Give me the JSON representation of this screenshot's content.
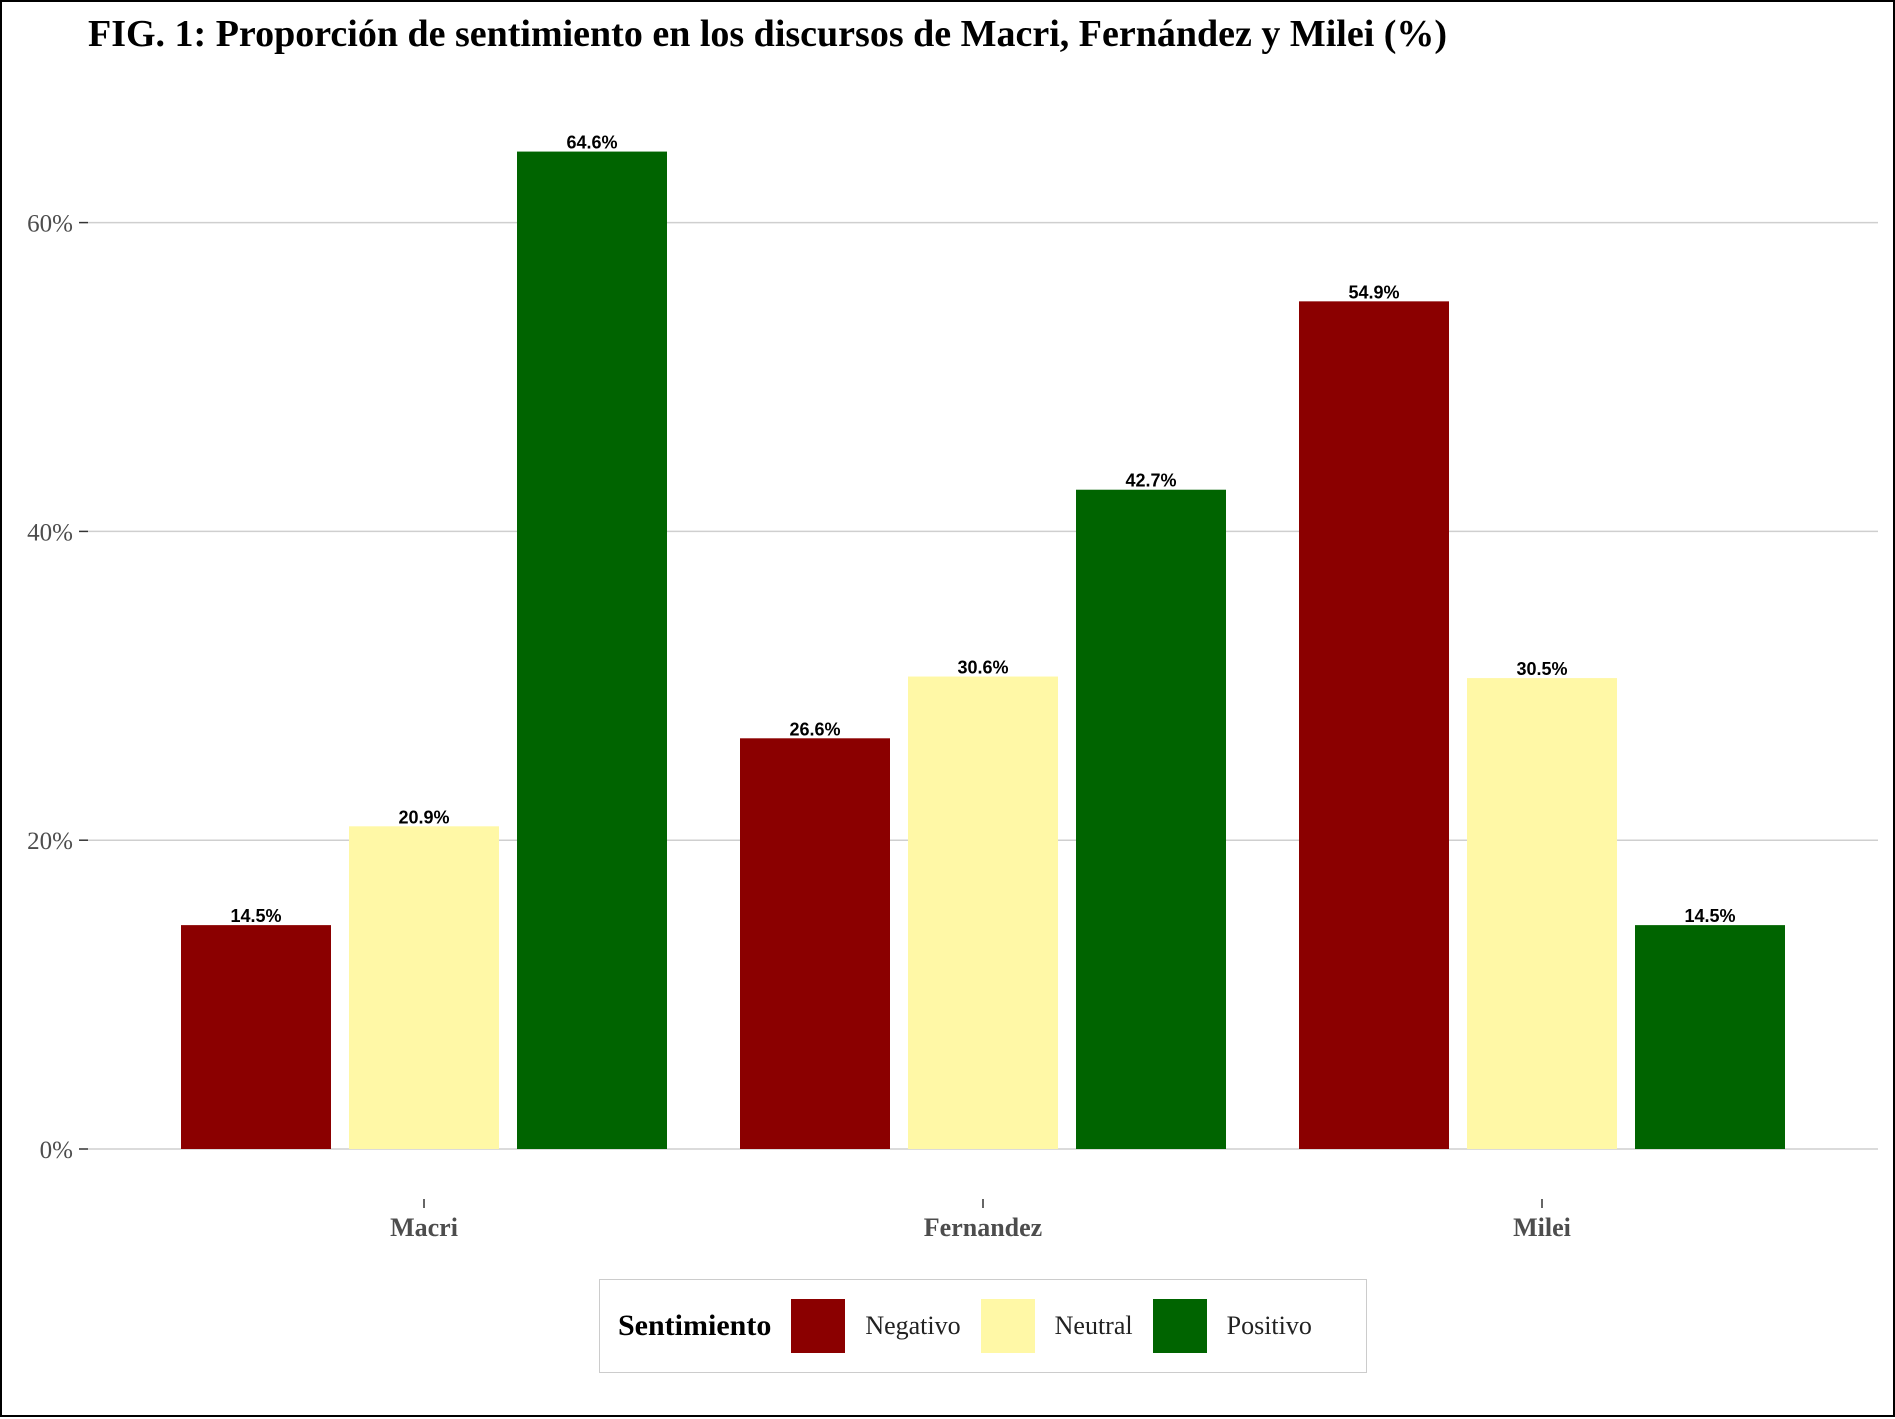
{
  "chart_data": {
    "type": "bar",
    "title": "FIG. 1: Proporción de sentimiento en los discursos de Macri, Fernández y Milei (%)",
    "xlabel": "",
    "ylabel": "",
    "categories": [
      "Macri",
      "Fernandez",
      "Milei"
    ],
    "series": [
      {
        "name": "Negativo",
        "color": "#8b0000",
        "values": [
          14.5,
          26.6,
          54.9
        ],
        "labels": [
          "14.5%",
          "26.6%",
          "54.9%"
        ]
      },
      {
        "name": "Neutral",
        "color": "#fff8a6",
        "values": [
          20.9,
          30.6,
          30.5
        ],
        "labels": [
          "20.9%",
          "30.6%",
          "30.5%"
        ]
      },
      {
        "name": "Positivo",
        "color": "#006400",
        "values": [
          64.6,
          42.7,
          14.5
        ],
        "labels": [
          "64.6%",
          "42.7%",
          "14.5%"
        ]
      }
    ],
    "ylim": [
      0,
      68
    ],
    "yticks": [
      0,
      20,
      40,
      60
    ],
    "ytick_labels": [
      "0%",
      "20%",
      "40%",
      "60%"
    ],
    "grid": "horizontal",
    "legend": {
      "title": "Sentimiento",
      "position": "bottom"
    }
  }
}
